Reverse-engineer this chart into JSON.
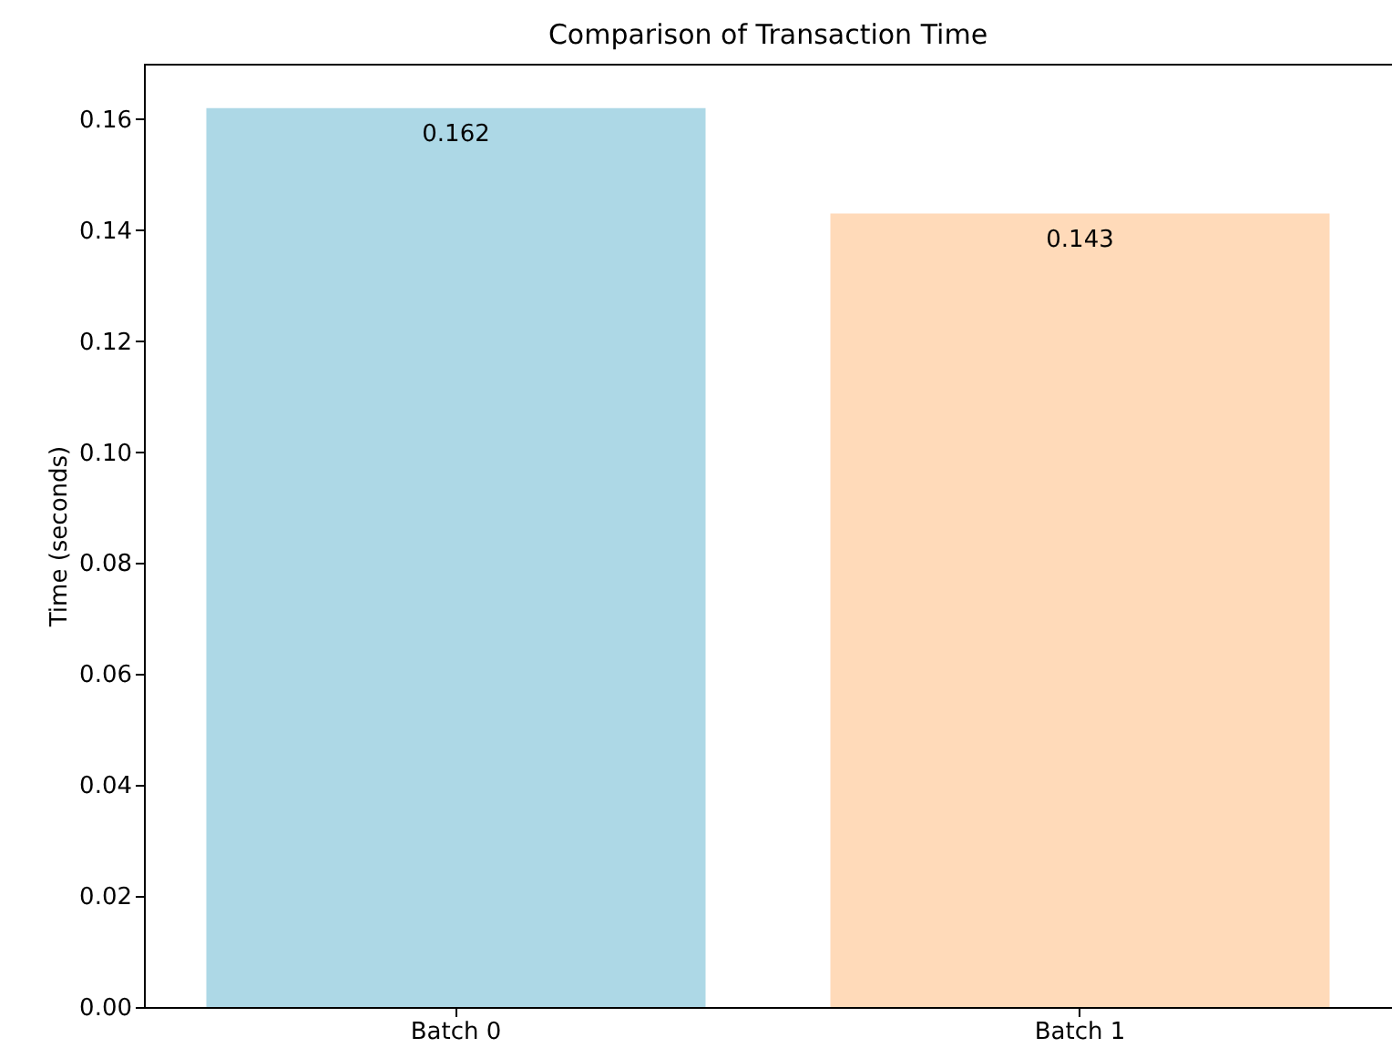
{
  "chart_data": {
    "type": "bar",
    "title": "Comparison of Transaction Time",
    "ylabel": "Time (seconds)",
    "categories": [
      "Batch 0",
      "Batch 1"
    ],
    "values": [
      0.162,
      0.143
    ],
    "colors": [
      "#add8e6",
      "#ffdab9"
    ],
    "ylim": [
      0,
      0.17
    ],
    "yticks": [
      {
        "value": 0,
        "label": "0.00"
      },
      0.02,
      0.04,
      0.06,
      0.08,
      {
        "value": 0.1,
        "label": "0.10"
      },
      0.12,
      0.14,
      0.16
    ],
    "grid": false,
    "data_labels": true
  }
}
